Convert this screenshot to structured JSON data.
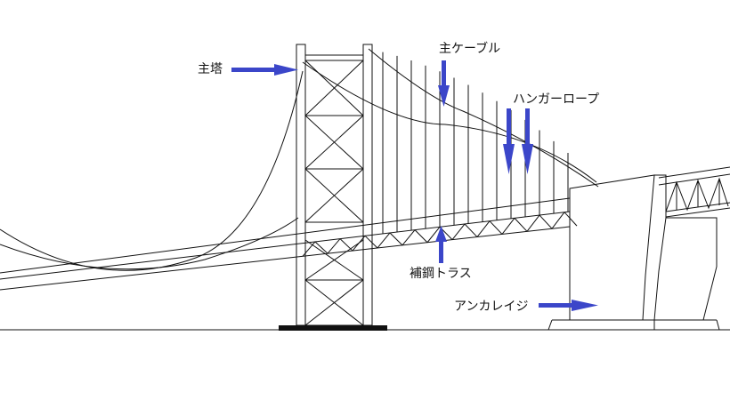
{
  "labels": {
    "tower": "主塔",
    "main_cable": "主ケーブル",
    "hanger_rope": "ハンガーロープ",
    "stiffening_truss": "補鋼トラス",
    "anchorage": "アンカレイジ"
  },
  "colors": {
    "line": "#111111",
    "arrow": "#3b46c9",
    "background": "#ffffff"
  }
}
